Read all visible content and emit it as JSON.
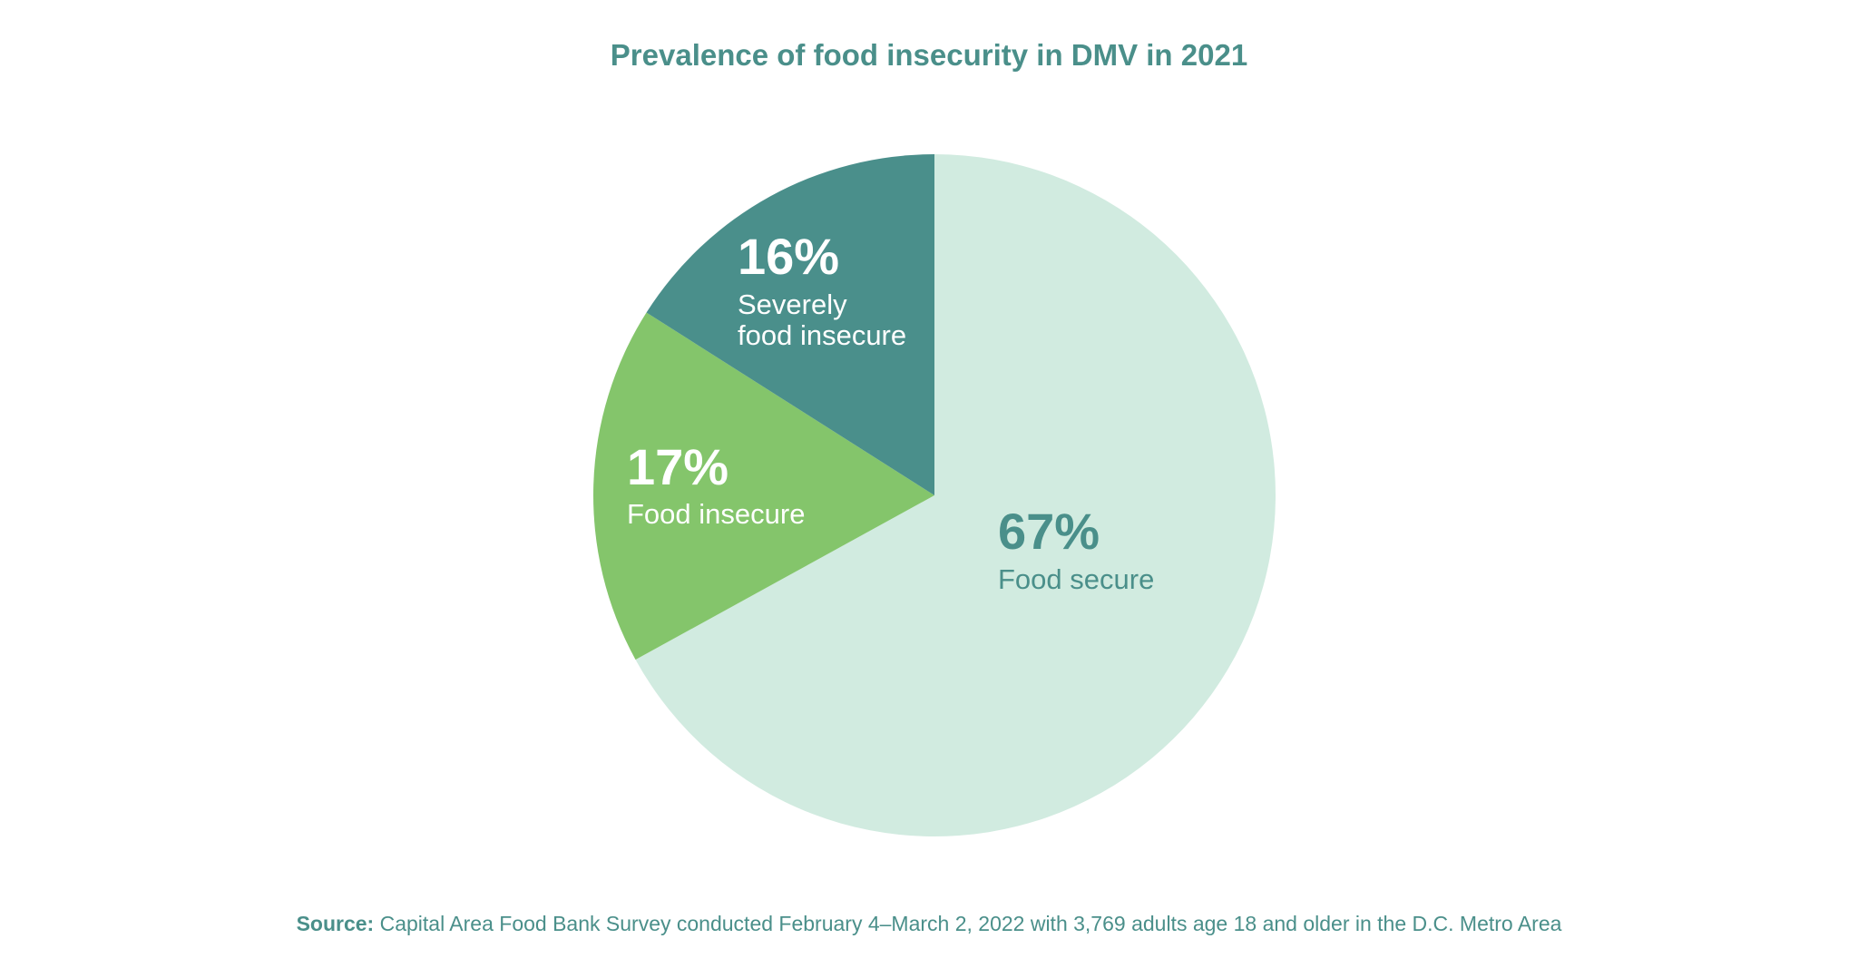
{
  "chart_data": {
    "type": "pie",
    "title": "Prevalence of food insecurity in DMV in 2021",
    "slices": [
      {
        "label": "Food secure",
        "value": 67,
        "display": "67%",
        "color": "#d1ebe0",
        "text_color": "#4a8f8a"
      },
      {
        "label": "Food insecure",
        "value": 17,
        "display": "17%",
        "color": "#84c56b",
        "text_color": "#ffffff"
      },
      {
        "label_lines": [
          "Severely",
          "food insecure"
        ],
        "label": "Severely food insecure",
        "value": 16,
        "display": "16%",
        "color": "#4a8f8b",
        "text_color": "#ffffff"
      }
    ],
    "start": "top",
    "direction": "clockwise"
  },
  "source": {
    "prefix": "Source:",
    "text": "Capital Area Food Bank Survey conducted February 4–March 2, 2022 with 3,769 adults age 18 and older in the D.C. Metro Area"
  }
}
